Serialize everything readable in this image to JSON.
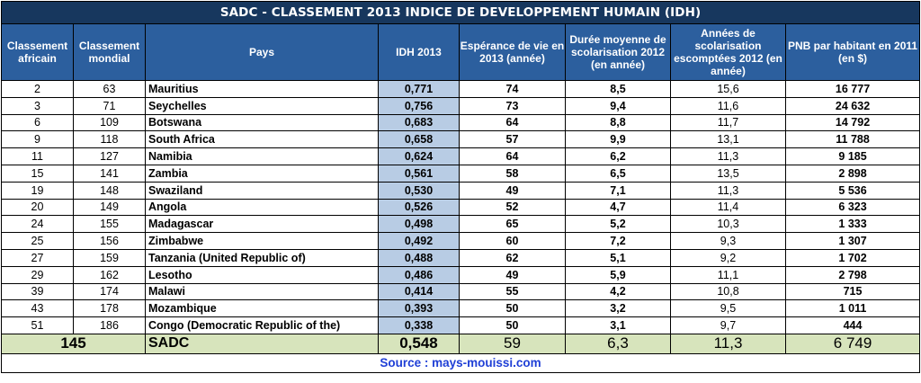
{
  "title": "SADC - CLASSEMENT 2013 INDICE DE DEVELOPPEMENT HUMAIN (IDH)",
  "headers": {
    "rank_africa": "Classement africain",
    "rank_world": "Classement mondial",
    "country": "Pays",
    "idh": "IDH 2013",
    "life": "Espérance de vie en 2013 (année)",
    "school_mean": "Durée moyenne de scolarisation 2012 (en année)",
    "school_expected": "Années de scolarisation escomptées 2012 (en année)",
    "gnp": "PNB par habitant en 2011 (en $)"
  },
  "rows": [
    {
      "rank_africa": "2",
      "rank_world": "63",
      "country": "Mauritius",
      "idh": "0,771",
      "life": "74",
      "school_mean": "8,5",
      "school_expected": "15,6",
      "gnp": "16 777"
    },
    {
      "rank_africa": "3",
      "rank_world": "71",
      "country": "Seychelles",
      "idh": "0,756",
      "life": "73",
      "school_mean": "9,4",
      "school_expected": "11,6",
      "gnp": "24 632"
    },
    {
      "rank_africa": "6",
      "rank_world": "109",
      "country": "Botswana",
      "idh": "0,683",
      "life": "64",
      "school_mean": "8,8",
      "school_expected": "11,7",
      "gnp": "14 792"
    },
    {
      "rank_africa": "9",
      "rank_world": "118",
      "country": "South Africa",
      "idh": "0,658",
      "life": "57",
      "school_mean": "9,9",
      "school_expected": "13,1",
      "gnp": "11 788"
    },
    {
      "rank_africa": "11",
      "rank_world": "127",
      "country": "Namibia",
      "idh": "0,624",
      "life": "64",
      "school_mean": "6,2",
      "school_expected": "11,3",
      "gnp": "9 185"
    },
    {
      "rank_africa": "15",
      "rank_world": "141",
      "country": "Zambia",
      "idh": "0,561",
      "life": "58",
      "school_mean": "6,5",
      "school_expected": "13,5",
      "gnp": "2 898"
    },
    {
      "rank_africa": "19",
      "rank_world": "148",
      "country": "Swaziland",
      "idh": "0,530",
      "life": "49",
      "school_mean": "7,1",
      "school_expected": "11,3",
      "gnp": "5 536"
    },
    {
      "rank_africa": "20",
      "rank_world": "149",
      "country": "Angola",
      "idh": "0,526",
      "life": "52",
      "school_mean": "4,7",
      "school_expected": "11,4",
      "gnp": "6 323"
    },
    {
      "rank_africa": "24",
      "rank_world": "155",
      "country": "Madagascar",
      "idh": "0,498",
      "life": "65",
      "school_mean": "5,2",
      "school_expected": "10,3",
      "gnp": "1 333"
    },
    {
      "rank_africa": "25",
      "rank_world": "156",
      "country": "Zimbabwe",
      "idh": "0,492",
      "life": "60",
      "school_mean": "7,2",
      "school_expected": "9,3",
      "gnp": "1 307"
    },
    {
      "rank_africa": "27",
      "rank_world": "159",
      "country": "Tanzania (United Republic of)",
      "idh": "0,488",
      "life": "62",
      "school_mean": "5,1",
      "school_expected": "9,2",
      "gnp": "1 702"
    },
    {
      "rank_africa": "29",
      "rank_world": "162",
      "country": "Lesotho",
      "idh": "0,486",
      "life": "49",
      "school_mean": "5,9",
      "school_expected": "11,1",
      "gnp": "2 798"
    },
    {
      "rank_africa": "39",
      "rank_world": "174",
      "country": "Malawi",
      "idh": "0,414",
      "life": "55",
      "school_mean": "4,2",
      "school_expected": "10,8",
      "gnp": "715"
    },
    {
      "rank_africa": "43",
      "rank_world": "178",
      "country": "Mozambique",
      "idh": "0,393",
      "life": "50",
      "school_mean": "3,2",
      "school_expected": "9,5",
      "gnp": "1 011"
    },
    {
      "rank_africa": "51",
      "rank_world": "186",
      "country": "Congo (Democratic Republic of the)",
      "idh": "0,338",
      "life": "50",
      "school_mean": "3,1",
      "school_expected": "9,7",
      "gnp": "444"
    }
  ],
  "total": {
    "rank": "145",
    "country": "SADC",
    "idh": "0,548",
    "life": "59",
    "school_mean": "6,3",
    "school_expected": "11,3",
    "gnp": "6 749"
  },
  "source": "Source : mays-mouissi.com",
  "colors": {
    "title_bg": "#17375e",
    "header_bg": "#2c5f9e",
    "idh_col_bg": "#b8cce4",
    "total_bg": "#d7e4bc",
    "source_text": "#1f3fd6"
  }
}
